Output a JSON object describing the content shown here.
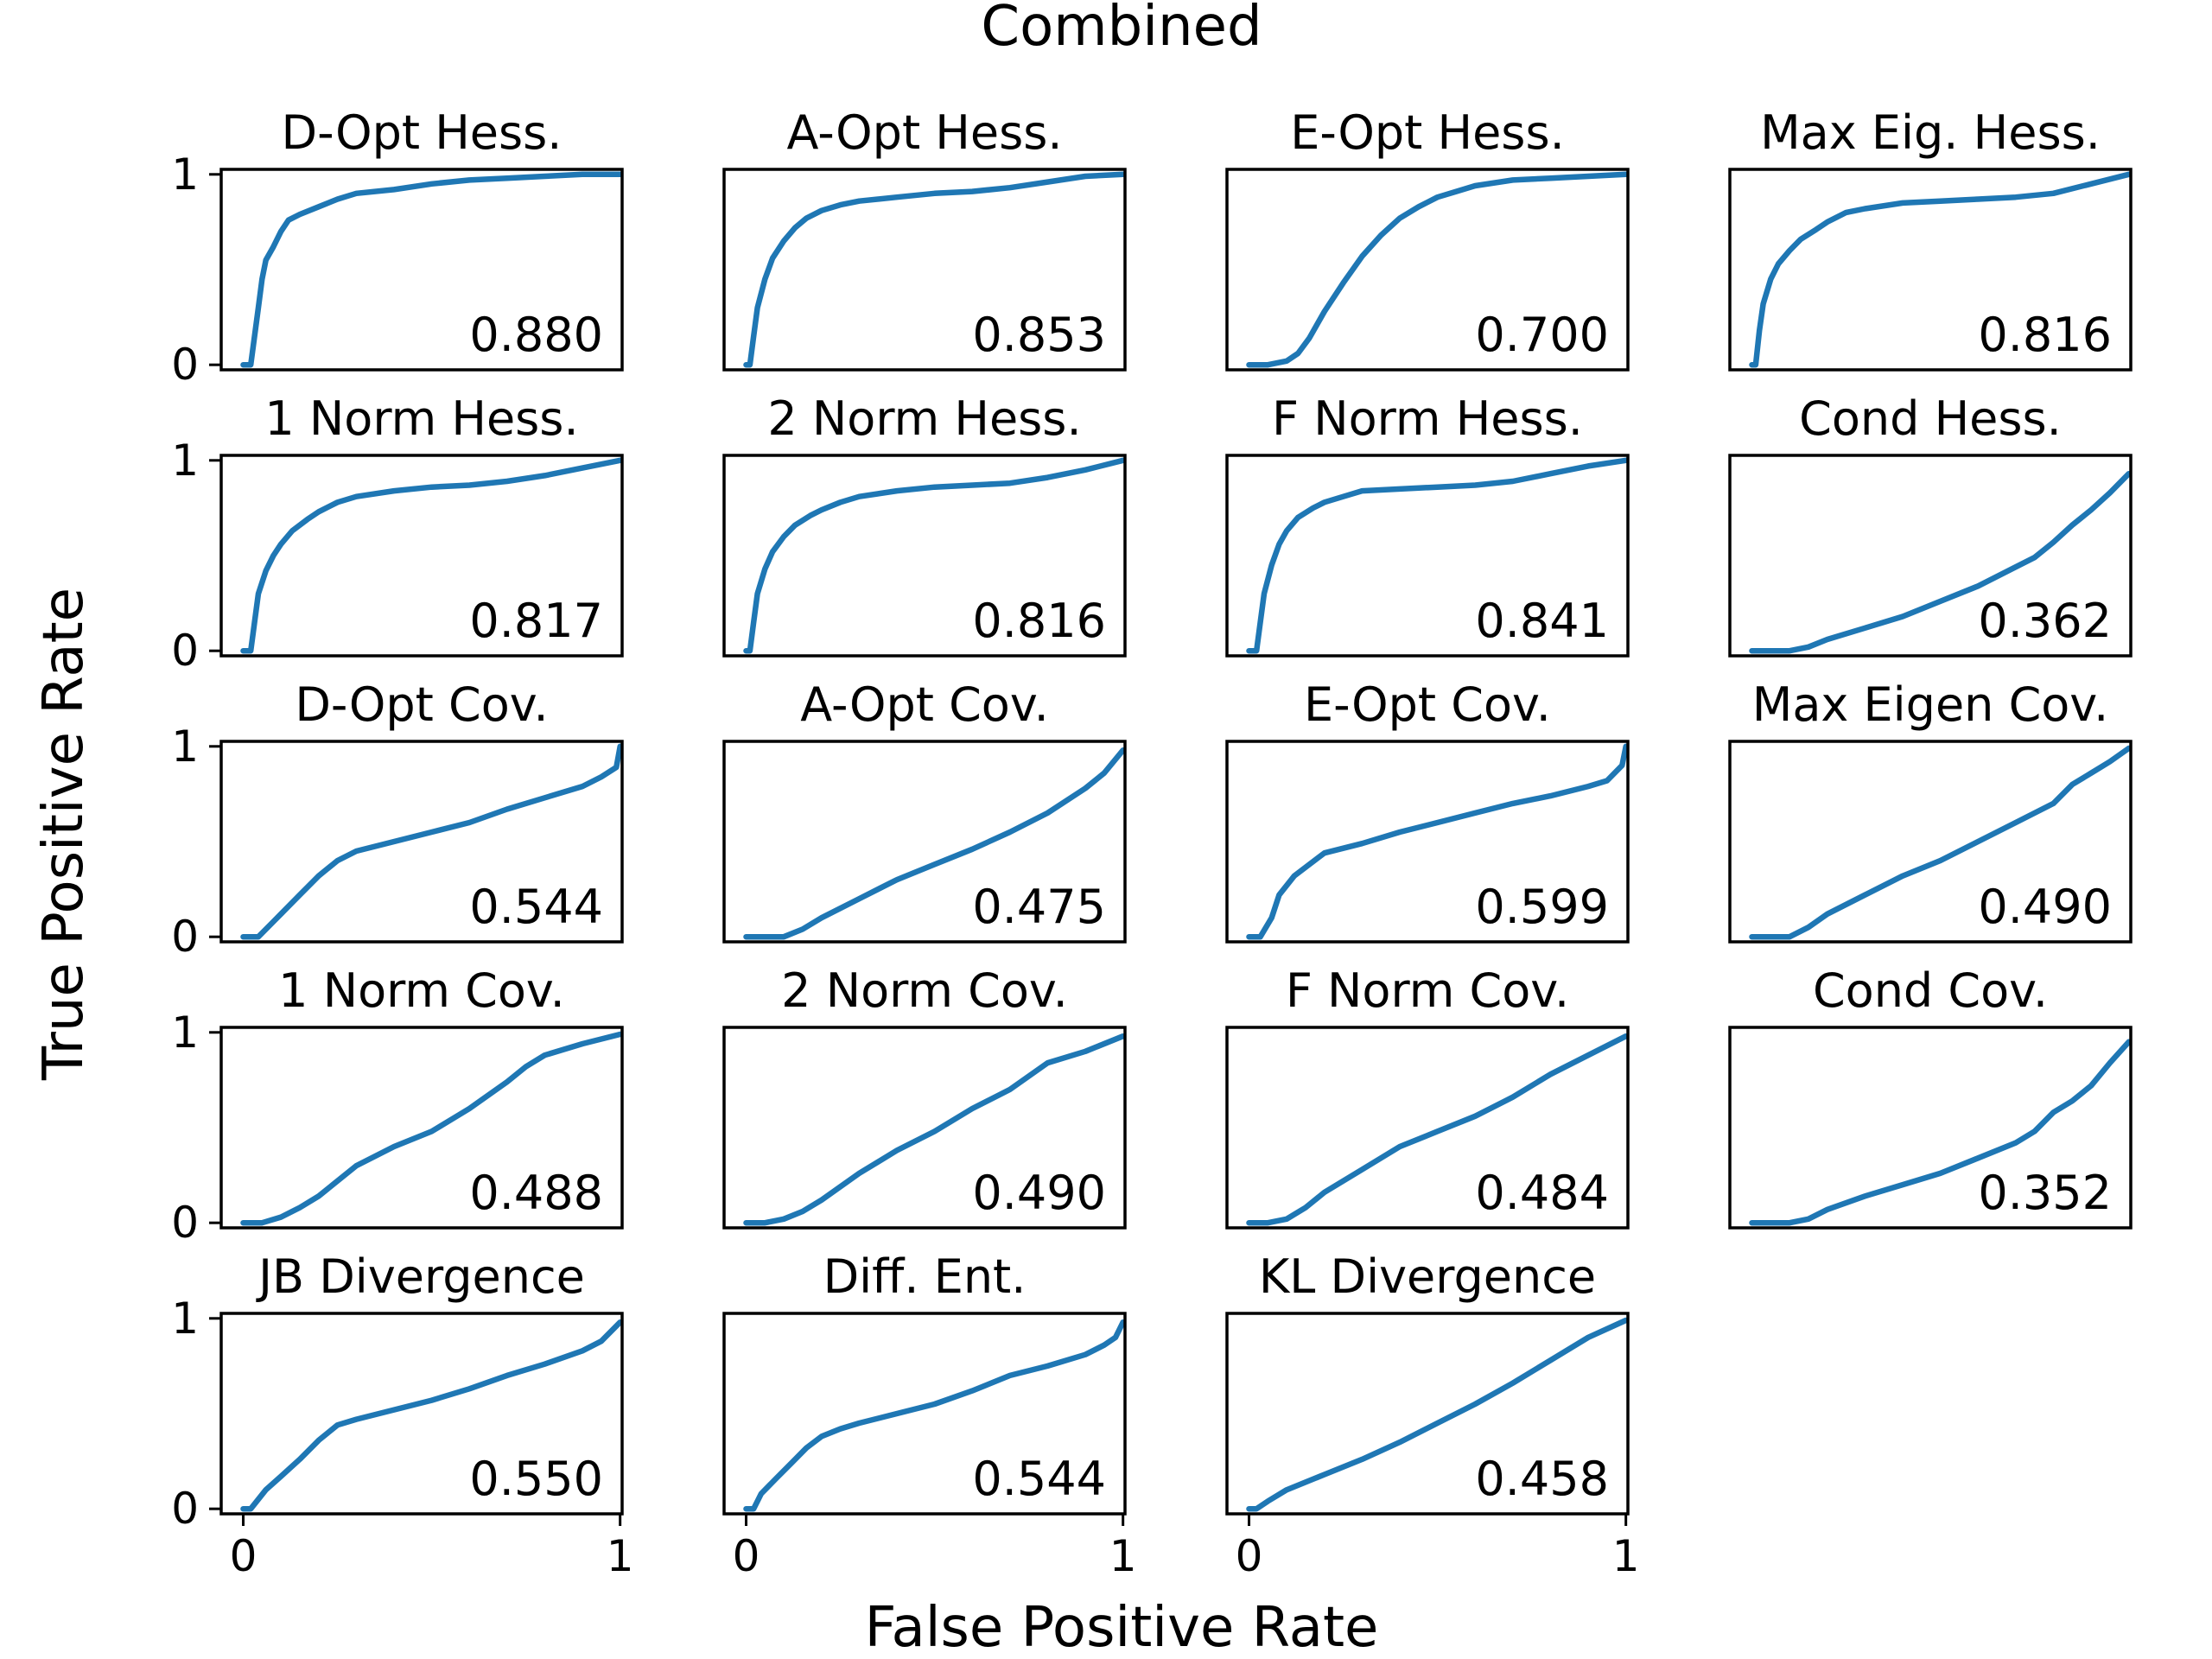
{
  "figure": {
    "title": "Combined",
    "xlabel": "False Positive Rate",
    "ylabel": "True Positive Rate",
    "line_color": "#1f77b4"
  },
  "chart_data": [
    {
      "type": "line",
      "title": "D-Opt Hess.",
      "annotation": "0.880",
      "xlim": [
        0,
        1
      ],
      "ylim": [
        0,
        1
      ],
      "xticks": [
        "0",
        "1"
      ],
      "yticks": [
        "0",
        "1"
      ],
      "x": [
        0,
        0.02,
        0.03,
        0.04,
        0.05,
        0.06,
        0.08,
        0.1,
        0.12,
        0.15,
        0.2,
        0.25,
        0.3,
        0.4,
        0.5,
        0.6,
        0.7,
        0.8,
        0.9,
        1.0
      ],
      "y": [
        0,
        0.0,
        0.15,
        0.3,
        0.45,
        0.55,
        0.62,
        0.7,
        0.76,
        0.79,
        0.83,
        0.87,
        0.9,
        0.92,
        0.95,
        0.97,
        0.98,
        0.99,
        1.0,
        1.0
      ]
    },
    {
      "type": "line",
      "title": "A-Opt Hess.",
      "annotation": "0.853",
      "xlim": [
        0,
        1
      ],
      "ylim": [
        0,
        1
      ],
      "xticks": [
        "0",
        "1"
      ],
      "yticks": [
        "0",
        "1"
      ],
      "x": [
        0,
        0.01,
        0.02,
        0.03,
        0.05,
        0.07,
        0.1,
        0.13,
        0.16,
        0.2,
        0.25,
        0.3,
        0.4,
        0.5,
        0.6,
        0.7,
        0.8,
        0.9,
        1.0
      ],
      "y": [
        0,
        0.0,
        0.15,
        0.3,
        0.45,
        0.56,
        0.65,
        0.72,
        0.77,
        0.81,
        0.84,
        0.86,
        0.88,
        0.9,
        0.91,
        0.93,
        0.96,
        0.99,
        1.0
      ]
    },
    {
      "type": "line",
      "title": "E-Opt Hess.",
      "annotation": "0.700",
      "xlim": [
        0,
        1
      ],
      "ylim": [
        0,
        1
      ],
      "xticks": [
        "0",
        "1"
      ],
      "yticks": [
        "0",
        "1"
      ],
      "x": [
        0,
        0.05,
        0.1,
        0.13,
        0.16,
        0.2,
        0.25,
        0.3,
        0.35,
        0.4,
        0.45,
        0.5,
        0.55,
        0.6,
        0.7,
        0.8,
        0.9,
        1.0
      ],
      "y": [
        0,
        0.0,
        0.02,
        0.06,
        0.14,
        0.28,
        0.43,
        0.57,
        0.68,
        0.77,
        0.83,
        0.88,
        0.91,
        0.94,
        0.97,
        0.98,
        0.99,
        1.0
      ]
    },
    {
      "type": "line",
      "title": "Max Eig. Hess.",
      "annotation": "0.816",
      "xlim": [
        0,
        1
      ],
      "ylim": [
        0,
        1
      ],
      "xticks": [
        "0",
        "1"
      ],
      "yticks": [
        "0",
        "1"
      ],
      "x": [
        0,
        0.01,
        0.02,
        0.03,
        0.05,
        0.07,
        0.1,
        0.13,
        0.17,
        0.2,
        0.25,
        0.3,
        0.4,
        0.5,
        0.6,
        0.7,
        0.8,
        0.9,
        1.0
      ],
      "y": [
        0,
        0.0,
        0.18,
        0.32,
        0.45,
        0.53,
        0.6,
        0.66,
        0.71,
        0.75,
        0.8,
        0.82,
        0.85,
        0.86,
        0.87,
        0.88,
        0.9,
        0.95,
        1.0
      ]
    },
    {
      "type": "line",
      "title": "1 Norm Hess.",
      "annotation": "0.817",
      "xlim": [
        0,
        1
      ],
      "ylim": [
        0,
        1
      ],
      "xticks": [
        "0",
        "1"
      ],
      "yticks": [
        "0",
        "1"
      ],
      "x": [
        0,
        0.02,
        0.03,
        0.04,
        0.06,
        0.08,
        0.1,
        0.13,
        0.17,
        0.2,
        0.25,
        0.3,
        0.4,
        0.5,
        0.6,
        0.7,
        0.8,
        0.9,
        1.0
      ],
      "y": [
        0,
        0.0,
        0.15,
        0.3,
        0.42,
        0.5,
        0.56,
        0.63,
        0.69,
        0.73,
        0.78,
        0.81,
        0.84,
        0.86,
        0.87,
        0.89,
        0.92,
        0.96,
        1.0
      ]
    },
    {
      "type": "line",
      "title": "2 Norm Hess.",
      "annotation": "0.816",
      "xlim": [
        0,
        1
      ],
      "ylim": [
        0,
        1
      ],
      "xticks": [
        "0",
        "1"
      ],
      "yticks": [
        "0",
        "1"
      ],
      "x": [
        0,
        0.01,
        0.02,
        0.03,
        0.05,
        0.07,
        0.1,
        0.13,
        0.17,
        0.2,
        0.25,
        0.3,
        0.4,
        0.5,
        0.6,
        0.7,
        0.8,
        0.9,
        1.0
      ],
      "y": [
        0,
        0.0,
        0.15,
        0.3,
        0.43,
        0.52,
        0.6,
        0.66,
        0.71,
        0.74,
        0.78,
        0.81,
        0.84,
        0.86,
        0.87,
        0.88,
        0.91,
        0.95,
        1.0
      ]
    },
    {
      "type": "line",
      "title": "F Norm Hess.",
      "annotation": "0.841",
      "xlim": [
        0,
        1
      ],
      "ylim": [
        0,
        1
      ],
      "xticks": [
        "0",
        "1"
      ],
      "yticks": [
        "0",
        "1"
      ],
      "x": [
        0,
        0.02,
        0.03,
        0.04,
        0.06,
        0.08,
        0.1,
        0.13,
        0.17,
        0.2,
        0.25,
        0.3,
        0.4,
        0.5,
        0.6,
        0.7,
        0.8,
        0.9,
        1.0
      ],
      "y": [
        0,
        0.0,
        0.15,
        0.3,
        0.45,
        0.56,
        0.63,
        0.7,
        0.75,
        0.78,
        0.81,
        0.84,
        0.85,
        0.86,
        0.87,
        0.89,
        0.93,
        0.97,
        1.0
      ]
    },
    {
      "type": "line",
      "title": "Cond Hess.",
      "annotation": "0.362",
      "xlim": [
        0,
        1
      ],
      "ylim": [
        0,
        1
      ],
      "xticks": [
        "0",
        "1"
      ],
      "yticks": [
        "0",
        "1"
      ],
      "x": [
        0,
        0.1,
        0.15,
        0.2,
        0.3,
        0.4,
        0.5,
        0.6,
        0.7,
        0.75,
        0.8,
        0.85,
        0.9,
        0.95,
        1.0
      ],
      "y": [
        0,
        0.0,
        0.02,
        0.06,
        0.12,
        0.18,
        0.26,
        0.34,
        0.44,
        0.49,
        0.57,
        0.66,
        0.74,
        0.83,
        0.93
      ]
    },
    {
      "type": "line",
      "title": "D-Opt Cov.",
      "annotation": "0.544",
      "xlim": [
        0,
        1
      ],
      "ylim": [
        0,
        1
      ],
      "xticks": [
        "0",
        "1"
      ],
      "yticks": [
        "0",
        "1"
      ],
      "x": [
        0,
        0.04,
        0.08,
        0.1,
        0.15,
        0.2,
        0.25,
        0.3,
        0.4,
        0.5,
        0.6,
        0.7,
        0.8,
        0.9,
        0.95,
        0.99,
        1.0
      ],
      "y": [
        0,
        0.0,
        0.08,
        0.12,
        0.22,
        0.32,
        0.4,
        0.45,
        0.5,
        0.55,
        0.6,
        0.67,
        0.73,
        0.79,
        0.84,
        0.89,
        1.0
      ]
    },
    {
      "type": "line",
      "title": "A-Opt Cov.",
      "annotation": "0.475",
      "xlim": [
        0,
        1
      ],
      "ylim": [
        0,
        1
      ],
      "xticks": [
        "0",
        "1"
      ],
      "yticks": [
        "0",
        "1"
      ],
      "x": [
        0,
        0.1,
        0.15,
        0.2,
        0.3,
        0.4,
        0.5,
        0.6,
        0.7,
        0.8,
        0.9,
        0.95,
        1.0
      ],
      "y": [
        0,
        0.0,
        0.04,
        0.1,
        0.2,
        0.3,
        0.38,
        0.46,
        0.55,
        0.65,
        0.78,
        0.86,
        0.98
      ]
    },
    {
      "type": "line",
      "title": "E-Opt Cov.",
      "annotation": "0.599",
      "xlim": [
        0,
        1
      ],
      "ylim": [
        0,
        1
      ],
      "xticks": [
        "0",
        "1"
      ],
      "yticks": [
        "0",
        "1"
      ],
      "x": [
        0,
        0.03,
        0.06,
        0.08,
        0.12,
        0.16,
        0.2,
        0.3,
        0.4,
        0.5,
        0.6,
        0.7,
        0.8,
        0.9,
        0.95,
        0.99,
        1.0
      ],
      "y": [
        0,
        0.0,
        0.1,
        0.22,
        0.32,
        0.38,
        0.44,
        0.49,
        0.55,
        0.6,
        0.65,
        0.7,
        0.74,
        0.79,
        0.82,
        0.9,
        1.0
      ]
    },
    {
      "type": "line",
      "title": "Max Eigen Cov.",
      "annotation": "0.490",
      "xlim": [
        0,
        1
      ],
      "ylim": [
        0,
        1
      ],
      "xticks": [
        "0",
        "1"
      ],
      "yticks": [
        "0",
        "1"
      ],
      "x": [
        0,
        0.1,
        0.15,
        0.2,
        0.3,
        0.4,
        0.5,
        0.6,
        0.7,
        0.8,
        0.85,
        0.9,
        0.95,
        1.0
      ],
      "y": [
        0,
        0.0,
        0.05,
        0.12,
        0.22,
        0.32,
        0.4,
        0.5,
        0.6,
        0.7,
        0.8,
        0.86,
        0.92,
        0.99
      ]
    },
    {
      "type": "line",
      "title": "1 Norm Cov.",
      "annotation": "0.488",
      "xlim": [
        0,
        1
      ],
      "ylim": [
        0,
        1
      ],
      "xticks": [
        "0",
        "1"
      ],
      "yticks": [
        "0",
        "1"
      ],
      "x": [
        0,
        0.05,
        0.1,
        0.15,
        0.2,
        0.3,
        0.4,
        0.5,
        0.6,
        0.7,
        0.75,
        0.8,
        0.9,
        1.0
      ],
      "y": [
        0,
        0.0,
        0.03,
        0.08,
        0.14,
        0.3,
        0.4,
        0.48,
        0.6,
        0.74,
        0.82,
        0.88,
        0.94,
        0.99
      ]
    },
    {
      "type": "line",
      "title": "2 Norm Cov.",
      "annotation": "0.490",
      "xlim": [
        0,
        1
      ],
      "ylim": [
        0,
        1
      ],
      "xticks": [
        "0",
        "1"
      ],
      "yticks": [
        "0",
        "1"
      ],
      "x": [
        0,
        0.05,
        0.1,
        0.15,
        0.2,
        0.3,
        0.4,
        0.5,
        0.6,
        0.7,
        0.75,
        0.8,
        0.9,
        1.0
      ],
      "y": [
        0,
        0.0,
        0.02,
        0.06,
        0.12,
        0.26,
        0.38,
        0.48,
        0.6,
        0.7,
        0.77,
        0.84,
        0.9,
        0.98
      ]
    },
    {
      "type": "line",
      "title": "F Norm Cov.",
      "annotation": "0.484",
      "xlim": [
        0,
        1
      ],
      "ylim": [
        0,
        1
      ],
      "xticks": [
        "0",
        "1"
      ],
      "yticks": [
        "0",
        "1"
      ],
      "x": [
        0,
        0.05,
        0.1,
        0.15,
        0.2,
        0.3,
        0.4,
        0.5,
        0.6,
        0.7,
        0.8,
        0.9,
        1.0
      ],
      "y": [
        0,
        0.0,
        0.02,
        0.08,
        0.16,
        0.28,
        0.4,
        0.48,
        0.56,
        0.66,
        0.78,
        0.88,
        0.98
      ]
    },
    {
      "type": "line",
      "title": "Cond Cov.",
      "annotation": "0.352",
      "xlim": [
        0,
        1
      ],
      "ylim": [
        0,
        1
      ],
      "xticks": [
        "0",
        "1"
      ],
      "yticks": [
        "0",
        "1"
      ],
      "x": [
        0,
        0.1,
        0.15,
        0.2,
        0.3,
        0.4,
        0.5,
        0.6,
        0.7,
        0.75,
        0.8,
        0.85,
        0.9,
        0.95,
        1.0
      ],
      "y": [
        0,
        0.0,
        0.02,
        0.07,
        0.14,
        0.2,
        0.26,
        0.34,
        0.42,
        0.48,
        0.58,
        0.64,
        0.72,
        0.84,
        0.95
      ]
    },
    {
      "type": "line",
      "title": "JB Divergence",
      "annotation": "0.550",
      "xlim": [
        0,
        1
      ],
      "ylim": [
        0,
        1
      ],
      "xticks": [
        "0",
        "1"
      ],
      "yticks": [
        "0",
        "1"
      ],
      "x": [
        0,
        0.02,
        0.06,
        0.1,
        0.15,
        0.2,
        0.25,
        0.3,
        0.4,
        0.5,
        0.6,
        0.7,
        0.8,
        0.9,
        0.95,
        1.0
      ],
      "y": [
        0,
        0.0,
        0.1,
        0.17,
        0.26,
        0.36,
        0.44,
        0.47,
        0.52,
        0.57,
        0.63,
        0.7,
        0.76,
        0.83,
        0.88,
        0.98
      ]
    },
    {
      "type": "line",
      "title": "Diff. Ent.",
      "annotation": "0.544",
      "xlim": [
        0,
        1
      ],
      "ylim": [
        0,
        1
      ],
      "xticks": [
        "0",
        "1"
      ],
      "yticks": [
        "0",
        "1"
      ],
      "x": [
        0,
        0.02,
        0.04,
        0.08,
        0.12,
        0.16,
        0.2,
        0.25,
        0.3,
        0.4,
        0.5,
        0.6,
        0.7,
        0.8,
        0.9,
        0.95,
        0.98,
        1.0
      ],
      "y": [
        0,
        0.0,
        0.08,
        0.16,
        0.24,
        0.32,
        0.38,
        0.42,
        0.45,
        0.5,
        0.55,
        0.62,
        0.7,
        0.75,
        0.81,
        0.86,
        0.9,
        0.98
      ]
    },
    {
      "type": "line",
      "title": "KL Divergence",
      "annotation": "0.458",
      "xlim": [
        0,
        1
      ],
      "ylim": [
        0,
        1
      ],
      "xticks": [
        "0",
        "1"
      ],
      "yticks": [
        "0",
        "1"
      ],
      "x": [
        0,
        0.02,
        0.05,
        0.1,
        0.2,
        0.3,
        0.4,
        0.5,
        0.6,
        0.7,
        0.8,
        0.9,
        1.0
      ],
      "y": [
        0,
        0.0,
        0.04,
        0.1,
        0.18,
        0.26,
        0.35,
        0.45,
        0.55,
        0.66,
        0.78,
        0.9,
        0.99
      ]
    }
  ]
}
